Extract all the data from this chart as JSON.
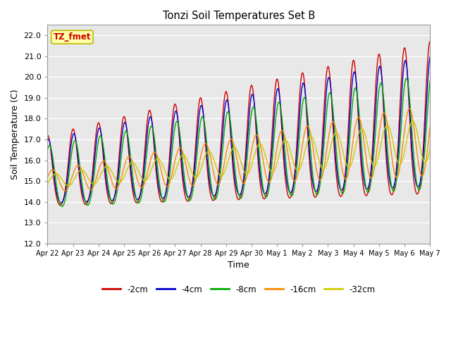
{
  "title": "Tonzi Soil Temperatures Set B",
  "xlabel": "Time",
  "ylabel": "Soil Temperature (C)",
  "ylim": [
    12.0,
    22.5
  ],
  "yticks": [
    12.0,
    13.0,
    14.0,
    15.0,
    16.0,
    17.0,
    18.0,
    19.0,
    20.0,
    21.0,
    22.0
  ],
  "series": [
    "-2cm",
    "-4cm",
    "-8cm",
    "-16cm",
    "-32cm"
  ],
  "colors": [
    "#cc0000",
    "#0000cc",
    "#00aa00",
    "#ff8800",
    "#cccc00"
  ],
  "annotation_text": "TZ_fmet",
  "annotation_bg": "#ffffaa",
  "annotation_border": "#bbbb00",
  "annotation_text_color": "#cc0000",
  "fig_bg": "#ffffff",
  "plot_bg": "#e8e8e8",
  "num_points": 1500,
  "days": 15
}
